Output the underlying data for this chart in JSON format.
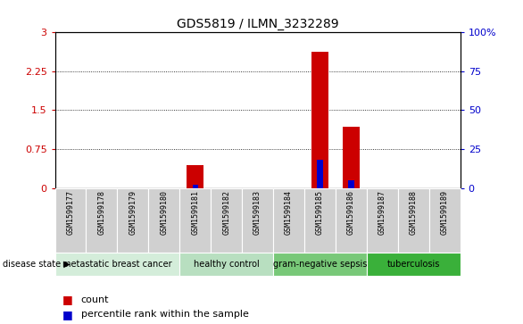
{
  "title": "GDS5819 / ILMN_3232289",
  "samples": [
    "GSM1599177",
    "GSM1599178",
    "GSM1599179",
    "GSM1599180",
    "GSM1599181",
    "GSM1599182",
    "GSM1599183",
    "GSM1599184",
    "GSM1599185",
    "GSM1599186",
    "GSM1599187",
    "GSM1599188",
    "GSM1599189"
  ],
  "count_values": [
    0,
    0,
    0,
    0,
    0.44,
    0,
    0,
    0,
    2.62,
    1.18,
    0,
    0,
    0
  ],
  "percentile_values": [
    0,
    0,
    0,
    0,
    2,
    0,
    0,
    0,
    18,
    5,
    0,
    0,
    0
  ],
  "ylim_left": [
    0,
    3
  ],
  "ylim_right": [
    0,
    100
  ],
  "yticks_left": [
    0,
    0.75,
    1.5,
    2.25,
    3
  ],
  "yticks_right": [
    0,
    25,
    50,
    75,
    100
  ],
  "ytick_labels_left": [
    "0",
    "0.75",
    "1.5",
    "2.25",
    "3"
  ],
  "ytick_labels_right": [
    "0",
    "25",
    "50",
    "75",
    "100%"
  ],
  "disease_groups": [
    {
      "label": "metastatic breast cancer",
      "start": 0,
      "end": 4,
      "color": "#d4edda"
    },
    {
      "label": "healthy control",
      "start": 4,
      "end": 7,
      "color": "#b8dfc0"
    },
    {
      "label": "gram-negative sepsis",
      "start": 7,
      "end": 10,
      "color": "#78c878"
    },
    {
      "label": "tuberculosis",
      "start": 10,
      "end": 13,
      "color": "#3ab03a"
    }
  ],
  "bar_color_count": "#cc0000",
  "bar_color_percentile": "#0000cc",
  "legend_count_label": "count",
  "legend_percentile_label": "percentile rank within the sample",
  "disease_state_label": "disease state",
  "left_tick_color": "#cc0000",
  "right_tick_color": "#0000cc",
  "sample_cell_color": "#d0d0d0",
  "figure_bg": "#ffffff"
}
